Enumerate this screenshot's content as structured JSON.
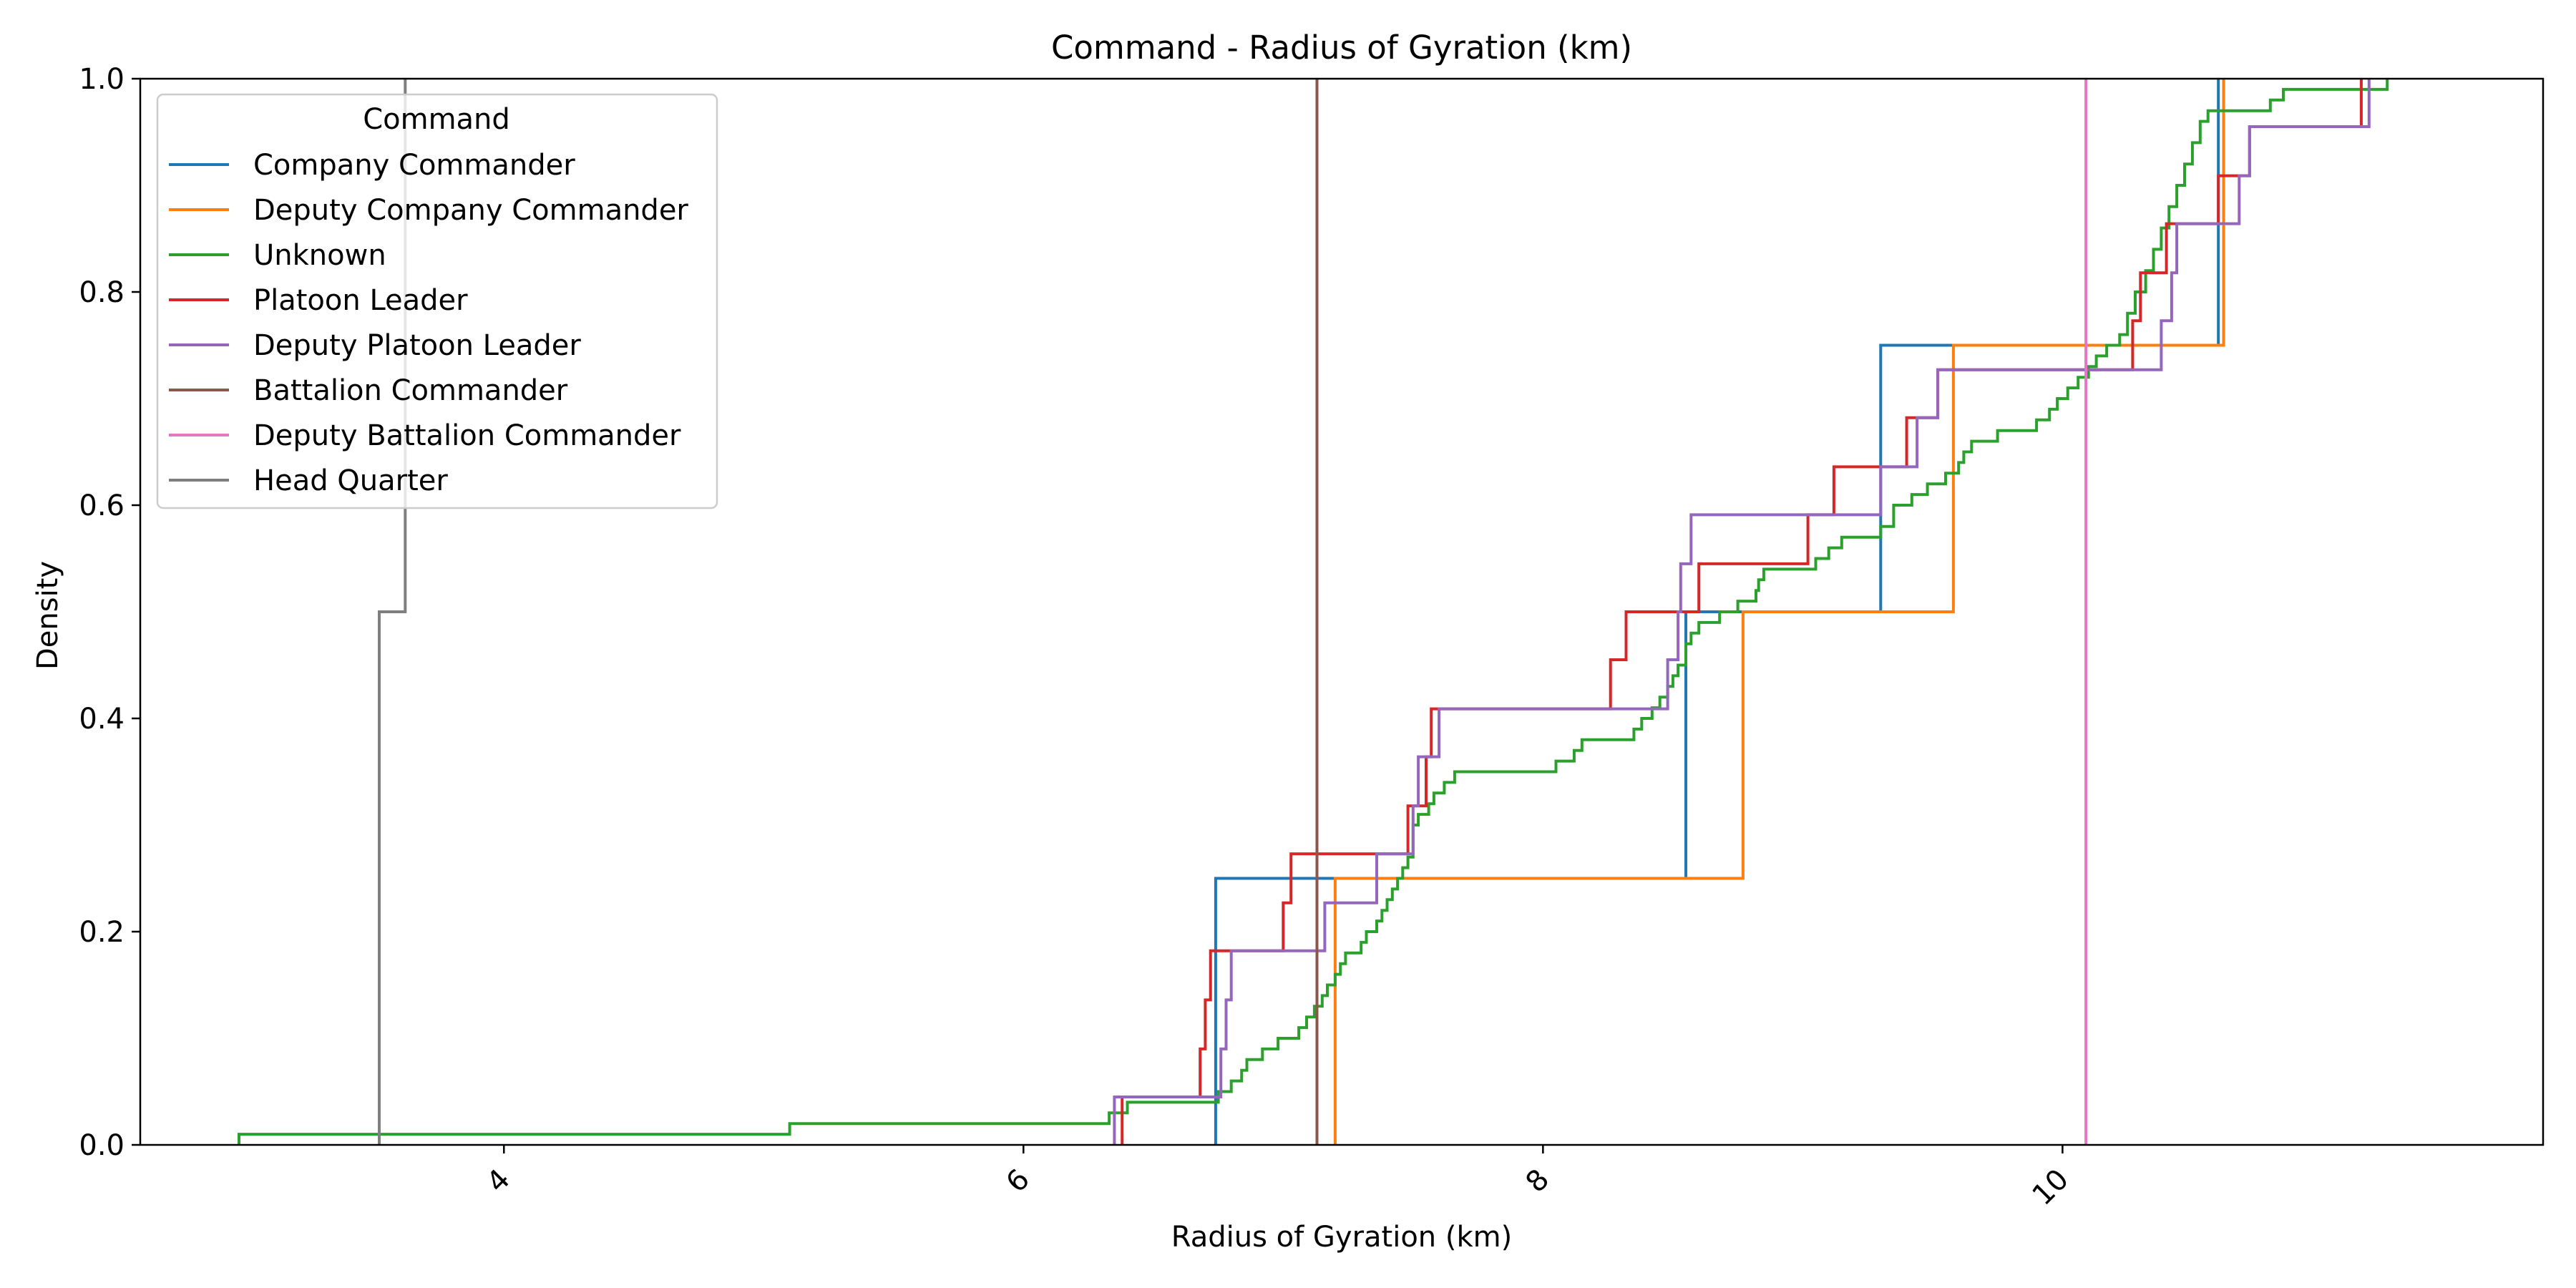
{
  "chart_data": {
    "type": "line",
    "title": "Command - Radius of Gyration (km)",
    "xlabel": "Radius of Gyration (km)",
    "ylabel": "Density",
    "xlim": [
      2.6,
      11.85
    ],
    "ylim": [
      0.0,
      1.0
    ],
    "xticks": [
      4,
      6,
      8,
      10
    ],
    "xtick_labels": [
      "4",
      "6",
      "8",
      "10"
    ],
    "yticks": [
      0.0,
      0.2,
      0.4,
      0.6,
      0.8,
      1.0
    ],
    "ytick_labels": [
      "0.0",
      "0.2",
      "0.4",
      "0.6",
      "0.8",
      "1.0"
    ],
    "xtick_rotation_deg": 45,
    "grid": false,
    "legend": {
      "title": "Command",
      "position": "top-left"
    },
    "series": [
      {
        "name": "Company Commander",
        "color": "#1f77b4",
        "points": [
          [
            6.74,
            0.0
          ],
          [
            6.74,
            0.25
          ],
          [
            8.55,
            0.25
          ],
          [
            8.55,
            0.5
          ],
          [
            9.3,
            0.5
          ],
          [
            9.3,
            0.75
          ],
          [
            10.6,
            0.75
          ],
          [
            10.6,
            1.0
          ]
        ]
      },
      {
        "name": "Deputy Company Commander",
        "color": "#ff7f0e",
        "points": [
          [
            7.2,
            0.0
          ],
          [
            7.2,
            0.25
          ],
          [
            8.77,
            0.25
          ],
          [
            8.77,
            0.5
          ],
          [
            9.58,
            0.5
          ],
          [
            9.58,
            0.75
          ],
          [
            10.62,
            0.75
          ],
          [
            10.62,
            1.0
          ]
        ]
      },
      {
        "name": "Unknown",
        "color": "#2ca02c",
        "points": [
          [
            2.98,
            0.0
          ],
          [
            2.98,
            0.01
          ],
          [
            5.1,
            0.01
          ],
          [
            5.1,
            0.02
          ],
          [
            6.33,
            0.02
          ],
          [
            6.33,
            0.03
          ],
          [
            6.4,
            0.03
          ],
          [
            6.4,
            0.04
          ],
          [
            6.75,
            0.04
          ],
          [
            6.75,
            0.05
          ],
          [
            6.8,
            0.05
          ],
          [
            6.8,
            0.06
          ],
          [
            6.84,
            0.06
          ],
          [
            6.84,
            0.07
          ],
          [
            6.86,
            0.07
          ],
          [
            6.86,
            0.08
          ],
          [
            6.92,
            0.08
          ],
          [
            6.92,
            0.09
          ],
          [
            6.98,
            0.09
          ],
          [
            6.98,
            0.1
          ],
          [
            7.06,
            0.1
          ],
          [
            7.06,
            0.11
          ],
          [
            7.09,
            0.11
          ],
          [
            7.09,
            0.12
          ],
          [
            7.12,
            0.12
          ],
          [
            7.12,
            0.13
          ],
          [
            7.15,
            0.13
          ],
          [
            7.15,
            0.14
          ],
          [
            7.17,
            0.14
          ],
          [
            7.17,
            0.15
          ],
          [
            7.2,
            0.15
          ],
          [
            7.2,
            0.16
          ],
          [
            7.22,
            0.16
          ],
          [
            7.22,
            0.17
          ],
          [
            7.24,
            0.17
          ],
          [
            7.24,
            0.18
          ],
          [
            7.3,
            0.18
          ],
          [
            7.3,
            0.19
          ],
          [
            7.32,
            0.19
          ],
          [
            7.32,
            0.2
          ],
          [
            7.36,
            0.2
          ],
          [
            7.36,
            0.21
          ],
          [
            7.38,
            0.21
          ],
          [
            7.38,
            0.22
          ],
          [
            7.4,
            0.22
          ],
          [
            7.4,
            0.23
          ],
          [
            7.42,
            0.23
          ],
          [
            7.42,
            0.24
          ],
          [
            7.44,
            0.24
          ],
          [
            7.44,
            0.25
          ],
          [
            7.46,
            0.25
          ],
          [
            7.46,
            0.26
          ],
          [
            7.48,
            0.26
          ],
          [
            7.48,
            0.27
          ],
          [
            7.5,
            0.27
          ],
          [
            7.5,
            0.3
          ],
          [
            7.52,
            0.3
          ],
          [
            7.52,
            0.31
          ],
          [
            7.56,
            0.31
          ],
          [
            7.56,
            0.32
          ],
          [
            7.58,
            0.32
          ],
          [
            7.58,
            0.33
          ],
          [
            7.62,
            0.33
          ],
          [
            7.62,
            0.34
          ],
          [
            7.66,
            0.34
          ],
          [
            7.66,
            0.35
          ],
          [
            8.05,
            0.35
          ],
          [
            8.05,
            0.36
          ],
          [
            8.12,
            0.36
          ],
          [
            8.12,
            0.37
          ],
          [
            8.15,
            0.37
          ],
          [
            8.15,
            0.38
          ],
          [
            8.35,
            0.38
          ],
          [
            8.35,
            0.39
          ],
          [
            8.38,
            0.39
          ],
          [
            8.38,
            0.4
          ],
          [
            8.42,
            0.4
          ],
          [
            8.42,
            0.41
          ],
          [
            8.45,
            0.41
          ],
          [
            8.45,
            0.42
          ],
          [
            8.48,
            0.42
          ],
          [
            8.48,
            0.43
          ],
          [
            8.5,
            0.43
          ],
          [
            8.5,
            0.44
          ],
          [
            8.52,
            0.44
          ],
          [
            8.52,
            0.45
          ],
          [
            8.55,
            0.45
          ],
          [
            8.55,
            0.47
          ],
          [
            8.57,
            0.47
          ],
          [
            8.57,
            0.48
          ],
          [
            8.6,
            0.48
          ],
          [
            8.6,
            0.49
          ],
          [
            8.68,
            0.49
          ],
          [
            8.68,
            0.5
          ],
          [
            8.75,
            0.5
          ],
          [
            8.75,
            0.51
          ],
          [
            8.82,
            0.51
          ],
          [
            8.82,
            0.52
          ],
          [
            8.83,
            0.52
          ],
          [
            8.83,
            0.53
          ],
          [
            8.85,
            0.53
          ],
          [
            8.85,
            0.54
          ],
          [
            9.05,
            0.54
          ],
          [
            9.05,
            0.55
          ],
          [
            9.1,
            0.55
          ],
          [
            9.1,
            0.56
          ],
          [
            9.15,
            0.56
          ],
          [
            9.15,
            0.57
          ],
          [
            9.3,
            0.57
          ],
          [
            9.3,
            0.58
          ],
          [
            9.35,
            0.58
          ],
          [
            9.35,
            0.6
          ],
          [
            9.42,
            0.6
          ],
          [
            9.42,
            0.61
          ],
          [
            9.48,
            0.61
          ],
          [
            9.48,
            0.62
          ],
          [
            9.55,
            0.62
          ],
          [
            9.55,
            0.63
          ],
          [
            9.6,
            0.63
          ],
          [
            9.6,
            0.64
          ],
          [
            9.62,
            0.64
          ],
          [
            9.62,
            0.65
          ],
          [
            9.65,
            0.65
          ],
          [
            9.65,
            0.66
          ],
          [
            9.75,
            0.66
          ],
          [
            9.75,
            0.67
          ],
          [
            9.9,
            0.67
          ],
          [
            9.9,
            0.68
          ],
          [
            9.95,
            0.68
          ],
          [
            9.95,
            0.69
          ],
          [
            9.98,
            0.69
          ],
          [
            9.98,
            0.7
          ],
          [
            10.02,
            0.7
          ],
          [
            10.02,
            0.71
          ],
          [
            10.06,
            0.71
          ],
          [
            10.06,
            0.72
          ],
          [
            10.1,
            0.72
          ],
          [
            10.1,
            0.73
          ],
          [
            10.13,
            0.73
          ],
          [
            10.13,
            0.74
          ],
          [
            10.17,
            0.74
          ],
          [
            10.17,
            0.75
          ],
          [
            10.22,
            0.75
          ],
          [
            10.22,
            0.76
          ],
          [
            10.25,
            0.76
          ],
          [
            10.25,
            0.78
          ],
          [
            10.28,
            0.78
          ],
          [
            10.28,
            0.8
          ],
          [
            10.32,
            0.8
          ],
          [
            10.32,
            0.82
          ],
          [
            10.35,
            0.82
          ],
          [
            10.35,
            0.84
          ],
          [
            10.38,
            0.84
          ],
          [
            10.38,
            0.86
          ],
          [
            10.41,
            0.86
          ],
          [
            10.41,
            0.88
          ],
          [
            10.44,
            0.88
          ],
          [
            10.44,
            0.9
          ],
          [
            10.47,
            0.9
          ],
          [
            10.47,
            0.92
          ],
          [
            10.5,
            0.92
          ],
          [
            10.5,
            0.94
          ],
          [
            10.53,
            0.94
          ],
          [
            10.53,
            0.96
          ],
          [
            10.56,
            0.96
          ],
          [
            10.56,
            0.97
          ],
          [
            10.8,
            0.97
          ],
          [
            10.8,
            0.98
          ],
          [
            10.85,
            0.98
          ],
          [
            10.85,
            0.99
          ],
          [
            11.25,
            0.99
          ],
          [
            11.25,
            1.0
          ]
        ]
      },
      {
        "name": "Platoon Leader",
        "color": "#d62728",
        "points": [
          [
            6.38,
            0.0
          ],
          [
            6.38,
            0.045
          ],
          [
            6.68,
            0.045
          ],
          [
            6.68,
            0.09
          ],
          [
            6.7,
            0.09
          ],
          [
            6.7,
            0.136
          ],
          [
            6.72,
            0.136
          ],
          [
            6.72,
            0.182
          ],
          [
            7.0,
            0.182
          ],
          [
            7.0,
            0.227
          ],
          [
            7.03,
            0.227
          ],
          [
            7.03,
            0.273
          ],
          [
            7.48,
            0.273
          ],
          [
            7.48,
            0.318
          ],
          [
            7.55,
            0.318
          ],
          [
            7.55,
            0.364
          ],
          [
            7.57,
            0.364
          ],
          [
            7.57,
            0.409
          ],
          [
            8.26,
            0.409
          ],
          [
            8.26,
            0.455
          ],
          [
            8.32,
            0.455
          ],
          [
            8.32,
            0.5
          ],
          [
            8.6,
            0.5
          ],
          [
            8.6,
            0.545
          ],
          [
            9.02,
            0.545
          ],
          [
            9.02,
            0.591
          ],
          [
            9.12,
            0.591
          ],
          [
            9.12,
            0.636
          ],
          [
            9.4,
            0.636
          ],
          [
            9.4,
            0.682
          ],
          [
            9.52,
            0.682
          ],
          [
            9.52,
            0.727
          ],
          [
            10.27,
            0.727
          ],
          [
            10.27,
            0.773
          ],
          [
            10.3,
            0.773
          ],
          [
            10.3,
            0.818
          ],
          [
            10.4,
            0.818
          ],
          [
            10.4,
            0.864
          ],
          [
            10.6,
            0.864
          ],
          [
            10.6,
            0.909
          ],
          [
            10.72,
            0.909
          ],
          [
            10.72,
            0.955
          ],
          [
            11.15,
            0.955
          ],
          [
            11.15,
            1.0
          ]
        ]
      },
      {
        "name": "Deputy Platoon Leader",
        "color": "#9467bd",
        "points": [
          [
            6.35,
            0.0
          ],
          [
            6.35,
            0.045
          ],
          [
            6.76,
            0.045
          ],
          [
            6.76,
            0.09
          ],
          [
            6.78,
            0.09
          ],
          [
            6.78,
            0.136
          ],
          [
            6.8,
            0.136
          ],
          [
            6.8,
            0.182
          ],
          [
            7.16,
            0.182
          ],
          [
            7.16,
            0.227
          ],
          [
            7.36,
            0.227
          ],
          [
            7.36,
            0.273
          ],
          [
            7.5,
            0.273
          ],
          [
            7.5,
            0.318
          ],
          [
            7.52,
            0.318
          ],
          [
            7.52,
            0.364
          ],
          [
            7.6,
            0.364
          ],
          [
            7.6,
            0.409
          ],
          [
            8.48,
            0.409
          ],
          [
            8.48,
            0.455
          ],
          [
            8.52,
            0.455
          ],
          [
            8.52,
            0.5
          ],
          [
            8.53,
            0.5
          ],
          [
            8.53,
            0.545
          ],
          [
            8.57,
            0.545
          ],
          [
            8.57,
            0.591
          ],
          [
            9.3,
            0.591
          ],
          [
            9.3,
            0.636
          ],
          [
            9.44,
            0.636
          ],
          [
            9.44,
            0.682
          ],
          [
            9.52,
            0.682
          ],
          [
            9.52,
            0.727
          ],
          [
            10.38,
            0.727
          ],
          [
            10.38,
            0.773
          ],
          [
            10.42,
            0.773
          ],
          [
            10.42,
            0.818
          ],
          [
            10.44,
            0.818
          ],
          [
            10.44,
            0.864
          ],
          [
            10.68,
            0.864
          ],
          [
            10.68,
            0.909
          ],
          [
            10.72,
            0.909
          ],
          [
            10.72,
            0.955
          ],
          [
            11.18,
            0.955
          ],
          [
            11.18,
            1.0
          ]
        ]
      },
      {
        "name": "Battalion Commander",
        "color": "#8c564b",
        "points": [
          [
            7.13,
            0.0
          ],
          [
            7.13,
            1.0
          ]
        ]
      },
      {
        "name": "Deputy Battalion Commander",
        "color": "#e377c2",
        "points": [
          [
            10.09,
            0.0
          ],
          [
            10.09,
            1.0
          ]
        ]
      },
      {
        "name": "Head Quarter",
        "color": "#7f7f7f",
        "points": [
          [
            3.52,
            0.0
          ],
          [
            3.52,
            0.5
          ],
          [
            3.62,
            0.5
          ],
          [
            3.62,
            1.0
          ]
        ]
      }
    ]
  }
}
